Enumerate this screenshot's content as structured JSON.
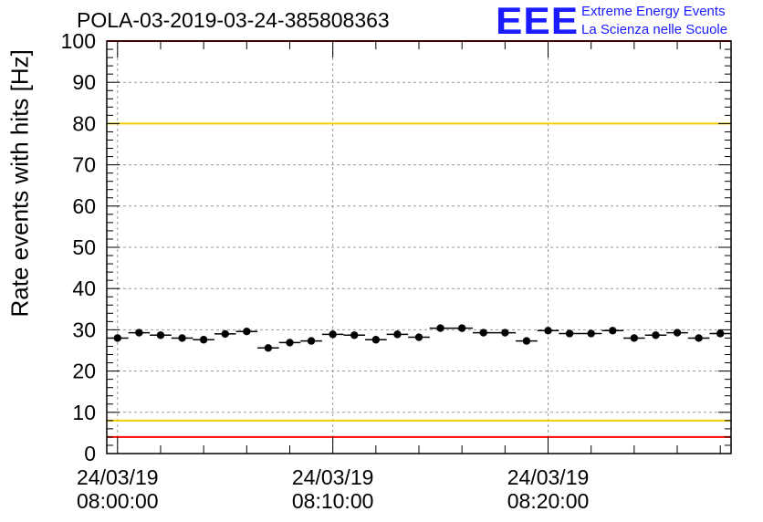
{
  "title": "POLA-03-2019-03-24-385808363",
  "logo": {
    "mark": "EEE",
    "line1": "Extreme Energy Events",
    "line2": "La Scienza nelle Scuole",
    "color": "#1b1bff"
  },
  "chart_data": {
    "type": "scatter",
    "ylabel": "Rate events with hits [Hz]",
    "xlabel": "",
    "x_unit": "minutes after 24/03/19 08:00:00",
    "ylim": [
      0,
      100
    ],
    "xlim": [
      -0.5,
      28.5
    ],
    "yticks": [
      0,
      10,
      20,
      30,
      40,
      50,
      60,
      70,
      80,
      90,
      100
    ],
    "xticks": [
      {
        "minute": 0,
        "date": "24/03/19",
        "time": "08:00:00"
      },
      {
        "minute": 10,
        "date": "24/03/19",
        "time": "08:10:00"
      },
      {
        "minute": 20,
        "date": "24/03/19",
        "time": "08:20:00"
      }
    ],
    "grid": true,
    "reference_lines": [
      {
        "value": 100,
        "color": "#ff0000"
      },
      {
        "value": 80,
        "color": "#f2d000"
      },
      {
        "value": 8,
        "color": "#f2d000"
      },
      {
        "value": 4,
        "color": "#ff0000"
      }
    ],
    "series": [
      {
        "marker_color": "#000000",
        "x": [
          0,
          1,
          2,
          3,
          4,
          5,
          6,
          7,
          8,
          9,
          10,
          11,
          12,
          13,
          14,
          15,
          16,
          17,
          18,
          19,
          20,
          21,
          22,
          23,
          24,
          25,
          26,
          27,
          28
        ],
        "y": [
          28.0,
          29.3,
          28.7,
          28.0,
          27.6,
          29.0,
          29.6,
          25.6,
          26.9,
          27.3,
          28.9,
          28.7,
          27.6,
          28.9,
          28.2,
          30.4,
          30.4,
          29.3,
          29.3,
          27.3,
          29.8,
          29.1,
          29.1,
          29.8,
          28.0,
          28.7,
          29.3,
          28.0,
          29.1
        ]
      }
    ]
  }
}
